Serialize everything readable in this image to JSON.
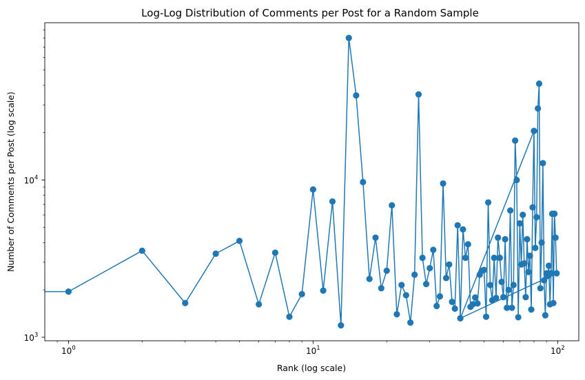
{
  "chart_data": {
    "type": "line",
    "title": "Log-Log Distribution of Comments per Post for a Random Sample",
    "xlabel": "Rank (log scale)",
    "ylabel": "Number of Comments per Post (log scale)",
    "xscale": "log",
    "yscale": "log",
    "xlim": [
      0.8,
      122
    ],
    "ylim": [
      950,
      100000
    ],
    "xticks": [
      {
        "value": 1,
        "base": "10",
        "exp": "0"
      },
      {
        "value": 10,
        "base": "10",
        "exp": "1"
      },
      {
        "value": 100,
        "base": "10",
        "exp": "2"
      }
    ],
    "yticks": [
      {
        "value": 1000,
        "base": "10",
        "exp": "3"
      },
      {
        "value": 10000,
        "base": "10",
        "exp": "4"
      }
    ],
    "grid": false,
    "color": "#1f77b4",
    "markers": "circle",
    "series": [
      {
        "points": [
          [
            0.8,
            1950
          ],
          [
            1,
            1950
          ],
          [
            2,
            3550
          ],
          [
            3,
            1650
          ],
          [
            4,
            3400
          ],
          [
            5,
            4100
          ],
          [
            6,
            1620
          ],
          [
            7,
            3450
          ],
          [
            8,
            1350
          ],
          [
            9,
            1880
          ],
          [
            10,
            8700
          ],
          [
            11,
            1980
          ],
          [
            12,
            7300
          ],
          [
            13,
            1190
          ],
          [
            14,
            80000
          ],
          [
            15,
            34500
          ],
          [
            16,
            9700
          ],
          [
            17,
            2350
          ],
          [
            18,
            4300
          ],
          [
            19,
            2050
          ],
          [
            20,
            2650
          ],
          [
            21,
            6900
          ],
          [
            22,
            1400
          ],
          [
            23,
            2150
          ],
          [
            24,
            1850
          ],
          [
            25,
            1240
          ],
          [
            26,
            2500
          ],
          [
            27,
            35000
          ],
          [
            28,
            3200
          ],
          [
            29,
            2180
          ],
          [
            30,
            2750
          ],
          [
            31,
            3600
          ],
          [
            32,
            1580
          ],
          [
            33,
            1820
          ],
          [
            34,
            9500
          ],
          [
            35,
            2380
          ],
          [
            36,
            2900
          ],
          [
            37,
            1680
          ],
          [
            38,
            1520
          ],
          [
            39,
            5150
          ],
          [
            40,
            1320
          ],
          [
            41,
            4850
          ],
          [
            42,
            3200
          ],
          [
            43,
            3900
          ],
          [
            44,
            1560
          ],
          [
            45,
            1620
          ],
          [
            46,
            1790
          ],
          [
            47,
            1640
          ],
          [
            48,
            2500
          ],
          [
            49,
            2650
          ],
          [
            50,
            2680
          ],
          [
            51,
            1350
          ],
          [
            52,
            7200
          ],
          [
            53,
            2150
          ],
          [
            54,
            1720
          ],
          [
            55,
            3200
          ],
          [
            56,
            1780
          ],
          [
            57,
            4300
          ],
          [
            58,
            3200
          ],
          [
            59,
            2250
          ],
          [
            60,
            1800
          ],
          [
            61,
            4200
          ],
          [
            62,
            1540
          ],
          [
            63,
            2000
          ],
          [
            64,
            6400
          ],
          [
            65,
            1540
          ],
          [
            66,
            2150
          ],
          [
            67,
            17800
          ],
          [
            68,
            10000
          ],
          [
            69,
            1340
          ],
          [
            70,
            5300
          ],
          [
            71,
            2900
          ],
          [
            72,
            6000
          ],
          [
            73,
            2950
          ],
          [
            74,
            1800
          ],
          [
            75,
            4200
          ],
          [
            76,
            2600
          ],
          [
            77,
            3300
          ],
          [
            78,
            1500
          ],
          [
            79,
            6700
          ],
          [
            80,
            20500
          ],
          [
            81,
            3700
          ],
          [
            82,
            5800
          ],
          [
            83,
            28500
          ],
          [
            84,
            41000
          ],
          [
            85,
            2050
          ],
          [
            86,
            4000
          ],
          [
            87,
            12800
          ],
          [
            88,
            2300
          ],
          [
            89,
            1380
          ],
          [
            90,
            2550
          ],
          [
            91,
            2450
          ],
          [
            92,
            2850
          ],
          [
            93,
            1620
          ],
          [
            94,
            2550
          ],
          [
            95,
            6100
          ],
          [
            96,
            1650
          ],
          [
            97,
            6100
          ],
          [
            98,
            4300
          ],
          [
            99,
            2550
          ],
          [
            40,
            1320
          ],
          [
            80,
            20500
          ]
        ]
      }
    ]
  }
}
